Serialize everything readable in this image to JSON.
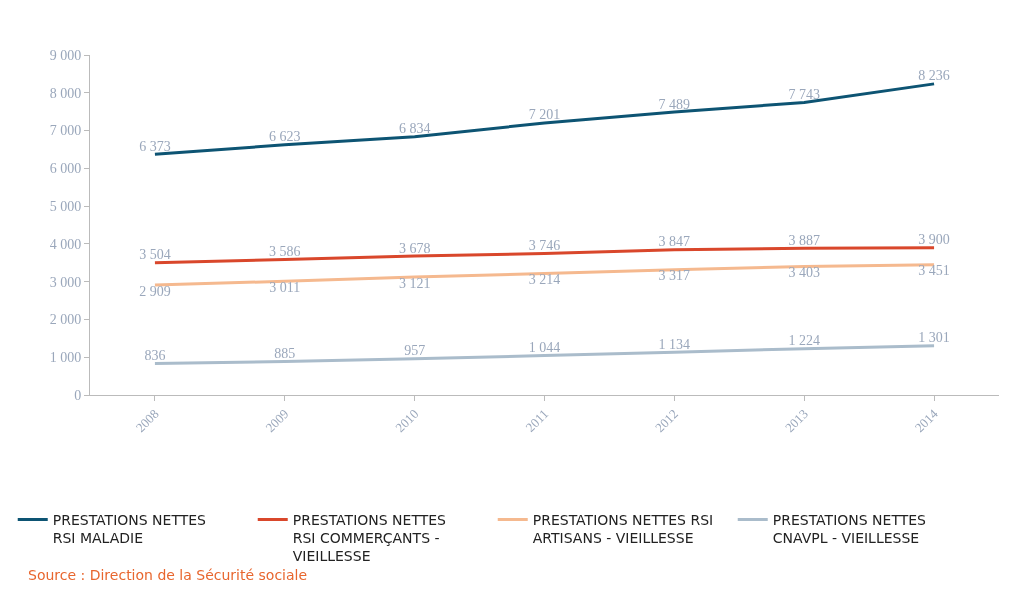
{
  "chart_data": {
    "type": "line",
    "categories": [
      "2008",
      "2009",
      "2010",
      "2011",
      "2012",
      "2013",
      "2014"
    ],
    "ylim": [
      0,
      9000
    ],
    "yticks": [
      {
        "value": 0,
        "label": "0"
      },
      {
        "value": 1000,
        "label": "1 000"
      },
      {
        "value": 2000,
        "label": "2 000"
      },
      {
        "value": 3000,
        "label": "3 000"
      },
      {
        "value": 4000,
        "label": "4 000"
      },
      {
        "value": 5000,
        "label": "5 000"
      },
      {
        "value": 6000,
        "label": "6 000"
      },
      {
        "value": 7000,
        "label": "7 000"
      },
      {
        "value": 8000,
        "label": "8 000"
      },
      {
        "value": 9000,
        "label": "9 000"
      }
    ],
    "grid": false,
    "legend": "bottom",
    "marker": "none",
    "line_style": "solid",
    "series": [
      {
        "name": "PRESTATIONS NETTES\nRSI MALADIE",
        "color": "#0d5473",
        "values": [
          6373,
          6623,
          6834,
          7201,
          7489,
          7743,
          8236
        ],
        "value_labels": [
          "6 373",
          "6 623",
          "6 834",
          "7 201",
          "7 489",
          "7 743",
          "8 236"
        ]
      },
      {
        "name": "PRESTATIONS NETTES\nRSI COMMERÇANTS -\nVIEILLESSE",
        "color": "#d9472b",
        "values": [
          3504,
          3586,
          3678,
          3746,
          3847,
          3887,
          3900
        ],
        "value_labels": [
          "3 504",
          "3 586",
          "3 678",
          "3 746",
          "3 847",
          "3 887",
          "3 900"
        ]
      },
      {
        "name": "PRESTATIONS NETTES RSI\nARTISANS - VIEILLESSE",
        "color": "#f5b98f",
        "values": [
          2909,
          3011,
          3121,
          3214,
          3317,
          3403,
          3451
        ],
        "value_labels": [
          "2 909",
          "3 011",
          "3 121",
          "3 214",
          "3 317",
          "3 403",
          "3 451"
        ]
      },
      {
        "name": "PRESTATIONS NETTES\nCNAVPL - VIEILLESSE",
        "color": "#aabccb",
        "values": [
          836,
          885,
          957,
          1044,
          1134,
          1224,
          1301
        ],
        "value_labels": [
          "836",
          "885",
          "957",
          "1 044",
          "1 134",
          "1 224",
          "1 301"
        ]
      }
    ],
    "annotations": [
      "Source : Direction de la Sécurité sociale"
    ]
  }
}
